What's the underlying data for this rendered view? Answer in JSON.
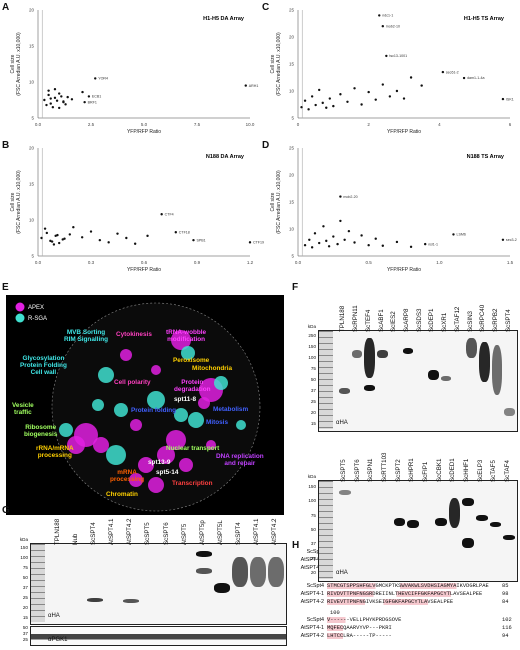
{
  "panels": {
    "A": {
      "letter": "A",
      "title": "H1-H5 DA Array"
    },
    "B": {
      "letter": "B",
      "title": "N188 DA Array"
    },
    "C": {
      "letter": "C",
      "title": "H1-H5 TS Array"
    },
    "D": {
      "letter": "D",
      "title": "N188 TS Array"
    },
    "E": {
      "letter": "E"
    },
    "F": {
      "letter": "F"
    },
    "G": {
      "letter": "G"
    },
    "H": {
      "letter": "H"
    }
  },
  "scatter_axes": {
    "ylabel_line1": "Cell size",
    "ylabel_line2": "(FSC Arredian A.U. x10,000)",
    "xlabel": "YFP/RFP Ratio"
  },
  "chart_data": [
    {
      "type": "scatter",
      "panel": "A",
      "title": "H1-H5 DA Array",
      "xlabel": "YFP/RFP Ratio",
      "ylabel": "Cell size (FSC Arredian A.U. x10,000)",
      "xlim": [
        0,
        10
      ],
      "ylim": [
        5,
        20
      ],
      "xticks": [
        "0.0",
        "2.5",
        "5.0",
        "7.5",
        "10.0"
      ],
      "yticks": [
        "5",
        "10",
        "15",
        "20"
      ],
      "x": [
        0.3,
        0.5,
        0.6,
        0.8,
        1.0,
        1.2,
        1.4,
        0.4,
        0.7,
        0.9,
        1.1,
        1.3,
        1.6,
        0.5,
        0.8,
        1.0,
        1.2,
        0.6,
        2.1,
        2.7,
        2.4,
        2.2,
        9.8
      ],
      "y": [
        7.5,
        8.2,
        7.0,
        7.8,
        8.4,
        7.2,
        7.9,
        6.8,
        6.5,
        7.4,
        8.0,
        6.9,
        7.6,
        8.8,
        9.0,
        6.4,
        7.3,
        7.7,
        8.6,
        10.5,
        8.0,
        7.2,
        9.5
      ],
      "labels": {
        "19": "YOR4",
        "20": "ECB1",
        "21": "BRF1",
        "22": "ARH1"
      }
    },
    {
      "type": "scatter",
      "panel": "B",
      "title": "N188 DA Array",
      "xlabel": "YFP/RFP Ratio",
      "ylabel": "Cell size (FSC Arredian A.U. x10,000)",
      "xlim": [
        0,
        1.2
      ],
      "ylim": [
        5,
        20
      ],
      "xticks": [
        "0.0",
        "0.3",
        "0.6",
        "0.9",
        "1.2"
      ],
      "yticks": [
        "5",
        "10",
        "15",
        "20"
      ],
      "x": [
        0.02,
        0.05,
        0.08,
        0.1,
        0.12,
        0.15,
        0.04,
        0.07,
        0.09,
        0.11,
        0.14,
        0.18,
        0.2,
        0.25,
        0.3,
        0.35,
        0.4,
        0.45,
        0.5,
        0.55,
        0.62,
        0.7,
        0.78,
        0.88,
        1.2
      ],
      "y": [
        7.5,
        8.2,
        7.0,
        7.8,
        6.8,
        7.4,
        8.8,
        7.1,
        6.6,
        7.9,
        7.3,
        8.0,
        9.0,
        7.6,
        8.4,
        7.2,
        6.9,
        8.1,
        7.5,
        6.7,
        7.8,
        10.8,
        8.3,
        7.2,
        6.9
      ],
      "labels": {
        "21": "CTF4",
        "22": "CTF18",
        "23": "SPB1",
        "24": "CTF19"
      }
    },
    {
      "type": "scatter",
      "panel": "C",
      "title": "H1-H5 TS Array",
      "xlabel": "YFP/RFP Ratio",
      "ylabel": "Cell size (FSC Arredian A.U. x10,000)",
      "xlim": [
        0,
        6
      ],
      "ylim": [
        5,
        25
      ],
      "xticks": [
        "0",
        "2",
        "4",
        "6"
      ],
      "yticks": [
        "5",
        "10",
        "15",
        "20",
        "25"
      ],
      "x": [
        0.1,
        0.2,
        0.3,
        0.4,
        0.5,
        0.6,
        0.7,
        0.8,
        0.9,
        1.0,
        1.2,
        1.4,
        1.6,
        1.8,
        2.0,
        2.2,
        2.4,
        2.6,
        2.8,
        3.0,
        3.2,
        3.5,
        2.3,
        2.4,
        2.5,
        4.1,
        4.7,
        5.8
      ],
      "y": [
        7.0,
        8.2,
        6.6,
        9.0,
        7.4,
        10.2,
        7.8,
        6.9,
        8.6,
        7.2,
        9.4,
        8.0,
        10.5,
        7.5,
        9.8,
        8.4,
        11.2,
        9.0,
        10.0,
        8.6,
        12.5,
        11.0,
        24.0,
        22.0,
        16.5,
        13.5,
        12.4,
        8.5
      ],
      "labels": {
        "22": "ndc1-1",
        "23": "mob2-10",
        "24": "tsc13-1001",
        "25": "sec61-2",
        "26": "dam1-1-4a",
        "27": "ISK1"
      }
    },
    {
      "type": "scatter",
      "panel": "D",
      "title": "N188 TS Array",
      "xlabel": "YFP/RFP Ratio",
      "ylabel": "Cell size (FSC Arredian A.U. x10,000)",
      "xlim": [
        0,
        1.5
      ],
      "ylim": [
        5,
        25
      ],
      "xticks": [
        "0.0",
        "0.5",
        "1.0",
        "1.5"
      ],
      "yticks": [
        "5",
        "10",
        "15",
        "20",
        "25"
      ],
      "x": [
        0.05,
        0.08,
        0.1,
        0.12,
        0.15,
        0.18,
        0.2,
        0.22,
        0.25,
        0.28,
        0.3,
        0.33,
        0.36,
        0.4,
        0.45,
        0.5,
        0.55,
        0.6,
        0.7,
        0.8,
        0.3,
        0.9,
        1.1,
        1.45
      ],
      "y": [
        7.0,
        8.0,
        6.6,
        9.2,
        7.4,
        10.5,
        7.8,
        6.8,
        8.6,
        7.2,
        11.5,
        8.0,
        9.6,
        7.5,
        8.8,
        7.0,
        8.2,
        6.9,
        7.6,
        6.7,
        16.0,
        7.2,
        9.0,
        8.0
      ],
      "labels": {
        "20": "mob2-20",
        "21": "nsl1-1",
        "22": "LSM6",
        "23": "sec3-2"
      }
    }
  ],
  "panelE": {
    "legend": [
      {
        "label": "APEX",
        "color": "#e020e0"
      },
      {
        "label": "R-SGA",
        "color": "#40e0d0"
      }
    ],
    "labels": [
      {
        "text": "MVB Sorting\nRIM Signalling",
        "color": "#40e8e8"
      },
      {
        "text": "Cytokinesis",
        "color": "#ff40c0"
      },
      {
        "text": "tRNA-wobble\nmodification",
        "color": "#ff40ff"
      },
      {
        "text": "Glycosylation\nProtein Folding\nCell wall",
        "color": "#40e8e8"
      },
      {
        "text": "Peroxisome",
        "color": "#ffd000"
      },
      {
        "text": "Mitochondria",
        "color": "#ffd000"
      },
      {
        "text": "Cell polarity",
        "color": "#ff40c0"
      },
      {
        "text": "Protein\ndegradation",
        "color": "#ff40ff"
      },
      {
        "text": "spt11-8",
        "color": "#ffffff"
      },
      {
        "text": "Vesicle\ntraffic",
        "color": "#a0ff60"
      },
      {
        "text": "Ribosome\nbiogenesis",
        "color": "#a0ff60"
      },
      {
        "text": "Metabolism",
        "color": "#4060ff"
      },
      {
        "text": "Protein folding",
        "color": "#4060ff"
      },
      {
        "text": "Mitosis",
        "color": "#4060ff"
      },
      {
        "text": "rRNA/mRNA\nprocessing",
        "color": "#ffd000"
      },
      {
        "text": "DNA replication\nand repair",
        "color": "#c040ff"
      },
      {
        "text": "Nuclear transport",
        "color": "#a0ff60"
      },
      {
        "text": "spt13-9",
        "color": "#ffffff"
      },
      {
        "text": "spt5-14",
        "color": "#ffffff"
      },
      {
        "text": "mRNA\nprocessing",
        "color": "#ff6000"
      },
      {
        "text": "Transcription",
        "color": "#ff4040"
      },
      {
        "text": "Chromatin",
        "color": "#ffd000"
      }
    ]
  },
  "panelF": {
    "top_lanes": [
      "TPLN188",
      "ScRPN11",
      "ScTEF4",
      "ScABF1",
      "ScIES2",
      "ScARP8",
      "ScSDS3",
      "ScDEP1",
      "ScXR1",
      "ScTAF12",
      "ScSIN3",
      "ScRPC40",
      "ScRPB2",
      "ScSPT4"
    ],
    "bottom_lanes": [
      "ScSPT5",
      "ScSPT6",
      "ScSPN1",
      "ScRTT103",
      "ScSPT2",
      "ScHPR1",
      "ScFIP1",
      "ScCBK1",
      "ScDED1",
      "ScHHF1",
      "ScELP3",
      "ScTAF5",
      "ScTAF4"
    ],
    "mw_top": [
      "kDa",
      "250",
      "150",
      "100",
      "75",
      "50",
      "37",
      "25",
      "20",
      "15"
    ],
    "mw_bottom": [
      "kDa",
      "150",
      "100",
      "75",
      "50",
      "37",
      "25",
      "20"
    ],
    "antibody": "αHA"
  },
  "panelG": {
    "lanes": [
      "TPLN188",
      "Nub",
      "ScSPT4",
      "AtSPT4.1",
      "AtSPT4.2",
      "ScSPT5",
      "ScSPT6",
      "AtSPT5",
      "AtSPT5p",
      "AtSPT5L",
      "ScSPT4",
      "AtSPT4.1",
      "AtSPT4.2"
    ],
    "mw": [
      "kDa",
      "150",
      "100",
      "75",
      "50",
      "37",
      "25",
      "20",
      "15"
    ],
    "mw2": [
      "50",
      "37",
      "25"
    ],
    "antibody1": "αHA",
    "antibody2": "αPGK1"
  },
  "panelH": {
    "ruler1": [
      "20",
      "40"
    ],
    "ruler2": [
      "60",
      "80"
    ],
    "ruler3": [
      "100"
    ],
    "blocks": [
      {
        "rows": [
          {
            "name": "ScSpt4",
            "seq": "MSSE---------RACMLCGIVQTTNEFNRDGCPNCQGIFEEAGV",
            "end": "36"
          },
          {
            "name": "AtSPT4-1",
            "seq": "MGSEAPAQIPTSFGHELRACLRCRLVKTYDQFRDSGCENCPFFKMEDDHE",
            "end": "49"
          },
          {
            "name": "AtSPT4-2",
            "seq": "MGSEAPAQIPTSFGHELRACLRCRLVKTYDQFRDSGCENCPFFKMEEDHE",
            "end": "49"
          }
        ]
      },
      {
        "rows": [
          {
            "name": "ScSpt4",
            "seq": "STMCGTSPPSHFGLVGMCKPTKSWVAKWLSVDHSIAGMYAIKVDGRLPAE",
            "end": "85"
          },
          {
            "name": "AtSPT4-1",
            "seq": "RIVDVTTPNFNGSRDREIINLTHEVCIFFGKFAPGCYTLAVSEALPEE",
            "end": "98"
          },
          {
            "name": "AtSPT4-2",
            "seq": "RIVEVTTPNFNGIVKSEIGFGKFAPGCYTLAVSEALPEE",
            "end": "84"
          }
        ]
      },
      {
        "rows": [
          {
            "name": "ScSpt4",
            "seq": "V------VELLPHYKPRDGSOVE",
            "end": "102"
          },
          {
            "name": "AtSPT4-1",
            "seq": "MQFECQAARVYVP---PKRI",
            "end": "116"
          },
          {
            "name": "AtSPT4-2",
            "seq": "LHTCCLRA-----TP-----",
            "end": "94"
          }
        ]
      }
    ]
  }
}
